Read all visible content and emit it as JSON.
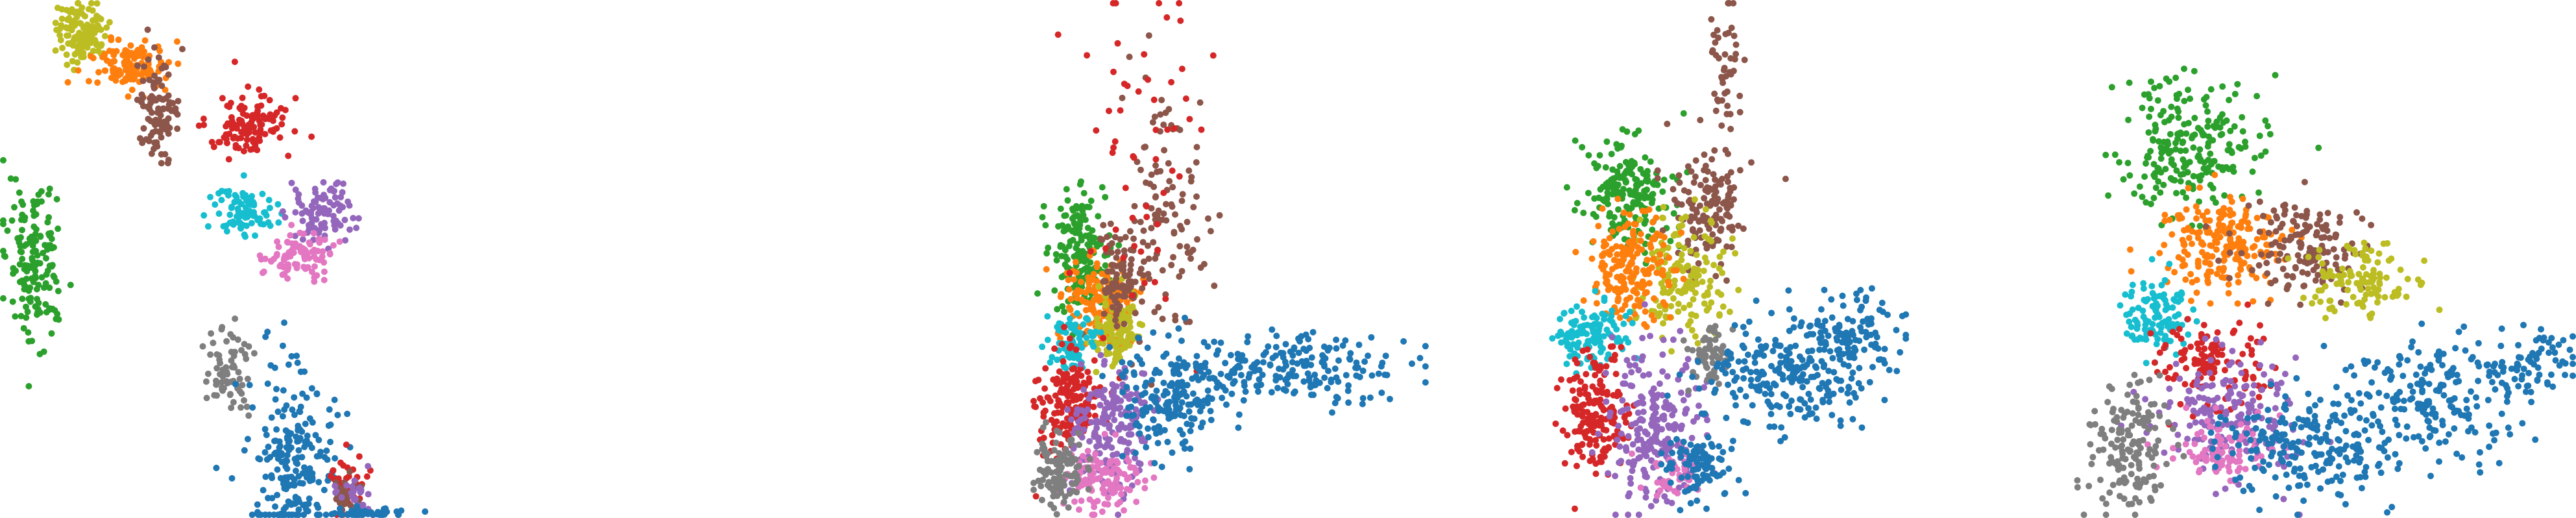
{
  "palette": {
    "blue": "#1f77b4",
    "orange": "#ff7f0e",
    "green": "#2ca02c",
    "red": "#d62728",
    "purple": "#9467bd",
    "brown": "#8c564b",
    "pink": "#e377c2",
    "gray": "#7f7f7f",
    "olive": "#bcbd22",
    "cyan": "#17becf"
  },
  "chart_data": [
    {
      "type": "scatter",
      "grid": false,
      "axes_visible": false,
      "legend": "none",
      "xlim": [
        0,
        100
      ],
      "ylim": [
        0,
        100
      ],
      "clusters": [
        {
          "color": "olive",
          "cx": 14,
          "cy": 6,
          "sx": 2.2,
          "sy": 3.0,
          "n": 120
        },
        {
          "color": "orange",
          "cx": 22,
          "cy": 13,
          "sx": 3.0,
          "sy": 2.5,
          "n": 130
        },
        {
          "color": "brown",
          "cx": 27,
          "cy": 21,
          "sx": 1.8,
          "sy": 4.5,
          "n": 100
        },
        {
          "color": "green",
          "cx": 6,
          "cy": 50,
          "sx": 2.5,
          "sy": 7.5,
          "n": 160
        },
        {
          "color": "red",
          "cx": 42,
          "cy": 24,
          "sx": 3.5,
          "sy": 3.0,
          "n": 120
        },
        {
          "color": "cyan",
          "cx": 42,
          "cy": 41,
          "sx": 2.5,
          "sy": 2.5,
          "n": 90
        },
        {
          "color": "purple",
          "cx": 54,
          "cy": 41,
          "sx": 3.0,
          "sy": 3.0,
          "n": 90
        },
        {
          "color": "pink",
          "cx": 51,
          "cy": 49,
          "sx": 3.0,
          "sy": 2.5,
          "n": 90
        },
        {
          "color": "gray",
          "cx": 39,
          "cy": 72,
          "sx": 2.0,
          "sy": 4.0,
          "n": 70
        },
        {
          "color": "blue",
          "cx": 50,
          "cy": 89,
          "sx": 3.5,
          "sy": 8.5,
          "n": 220
        },
        {
          "color": "red",
          "cx": 59,
          "cy": 93,
          "sx": 1.5,
          "sy": 3.0,
          "n": 40
        },
        {
          "color": "brown",
          "cx": 59,
          "cy": 96,
          "sx": 1.5,
          "sy": 2.0,
          "n": 30
        },
        {
          "color": "purple",
          "cx": 61,
          "cy": 95,
          "sx": 1.5,
          "sy": 2.0,
          "n": 25
        },
        {
          "color": "blue",
          "cx": 62,
          "cy": 99,
          "sx": 3.5,
          "sy": 0.6,
          "n": 45
        }
      ]
    },
    {
      "type": "scatter",
      "grid": false,
      "axes_visible": false,
      "legend": "none",
      "xlim": [
        0,
        100
      ],
      "ylim": [
        0,
        100
      ],
      "clusters": [
        {
          "color": "green",
          "cx": 12,
          "cy": 49,
          "sx": 3.5,
          "sy": 6.0,
          "n": 180
        },
        {
          "color": "orange",
          "cx": 17,
          "cy": 58,
          "sx": 4.0,
          "sy": 4.0,
          "n": 160
        },
        {
          "color": "olive",
          "cx": 22,
          "cy": 64,
          "sx": 3.0,
          "sy": 4.0,
          "n": 100
        },
        {
          "color": "brown",
          "cx": 23,
          "cy": 54,
          "sx": 3.0,
          "sy": 5.0,
          "n": 90
        },
        {
          "color": "brown",
          "cx": 33,
          "cy": 42,
          "sx": 5.5,
          "sy": 13.0,
          "n": 110
        },
        {
          "color": "red",
          "cx": 29,
          "cy": 28,
          "sx": 8.0,
          "sy": 16.0,
          "n": 55
        },
        {
          "color": "cyan",
          "cx": 10,
          "cy": 66,
          "sx": 3.0,
          "sy": 3.0,
          "n": 70
        },
        {
          "color": "red",
          "cx": 9,
          "cy": 78,
          "sx": 4.0,
          "sy": 5.0,
          "n": 170
        },
        {
          "color": "purple",
          "cx": 20,
          "cy": 82,
          "sx": 5.0,
          "sy": 6.0,
          "n": 180
        },
        {
          "color": "pink",
          "cx": 18,
          "cy": 93,
          "sx": 5.0,
          "sy": 3.0,
          "n": 120
        },
        {
          "color": "gray",
          "cx": 7,
          "cy": 91,
          "sx": 3.0,
          "sy": 4.0,
          "n": 110
        },
        {
          "color": "blue",
          "cx": 35,
          "cy": 77,
          "sx": 6.0,
          "sy": 5.0,
          "n": 160
        },
        {
          "color": "blue",
          "cx": 58,
          "cy": 71,
          "sx": 14.0,
          "sy": 3.5,
          "n": 170
        },
        {
          "color": "blue",
          "cx": 80,
          "cy": 72,
          "sx": 8.0,
          "sy": 3.0,
          "n": 50
        }
      ]
    },
    {
      "type": "scatter",
      "grid": false,
      "axes_visible": false,
      "legend": "none",
      "xlim": [
        0,
        100
      ],
      "ylim": [
        0,
        100
      ],
      "clusters": [
        {
          "color": "green",
          "cx": 23,
          "cy": 37,
          "sx": 6.0,
          "sy": 5.0,
          "n": 190
        },
        {
          "color": "brown",
          "cx": 45,
          "cy": 40,
          "sx": 5.0,
          "sy": 6.0,
          "n": 140
        },
        {
          "color": "brown",
          "cx": 50,
          "cy": 14,
          "sx": 2.0,
          "sy": 10.0,
          "n": 50
        },
        {
          "color": "olive",
          "cx": 38,
          "cy": 53,
          "sx": 6.0,
          "sy": 6.0,
          "n": 150
        },
        {
          "color": "orange",
          "cx": 24,
          "cy": 52,
          "sx": 6.0,
          "sy": 5.0,
          "n": 180
        },
        {
          "color": "cyan",
          "cx": 13,
          "cy": 65,
          "sx": 5.0,
          "sy": 3.0,
          "n": 120
        },
        {
          "color": "red",
          "cx": 14,
          "cy": 80,
          "sx": 4.5,
          "sy": 6.0,
          "n": 180
        },
        {
          "color": "purple",
          "cx": 30,
          "cy": 82,
          "sx": 7.0,
          "sy": 7.0,
          "n": 230
        },
        {
          "color": "pink",
          "cx": 36,
          "cy": 92,
          "sx": 5.0,
          "sy": 2.5,
          "n": 40
        },
        {
          "color": "gray",
          "cx": 46,
          "cy": 69,
          "sx": 3.0,
          "sy": 3.0,
          "n": 60
        },
        {
          "color": "blue",
          "cx": 43,
          "cy": 90,
          "sx": 5.0,
          "sy": 3.0,
          "n": 100
        },
        {
          "color": "blue",
          "cx": 67,
          "cy": 72,
          "sx": 11.0,
          "sy": 5.0,
          "n": 230
        },
        {
          "color": "blue",
          "cx": 84,
          "cy": 64,
          "sx": 8.0,
          "sy": 4.0,
          "n": 110
        }
      ]
    },
    {
      "type": "scatter",
      "grid": false,
      "axes_visible": false,
      "legend": "none",
      "xlim": [
        0,
        100
      ],
      "ylim": [
        0,
        100
      ],
      "clusters": [
        {
          "color": "green",
          "cx": 25,
          "cy": 28,
          "sx": 7.0,
          "sy": 6.5,
          "n": 220
        },
        {
          "color": "orange",
          "cx": 32,
          "cy": 47,
          "sx": 6.0,
          "sy": 4.5,
          "n": 200
        },
        {
          "color": "brown",
          "cx": 47,
          "cy": 48,
          "sx": 6.0,
          "sy": 4.5,
          "n": 150
        },
        {
          "color": "olive",
          "cx": 57,
          "cy": 55,
          "sx": 5.0,
          "sy": 4.0,
          "n": 110
        },
        {
          "color": "cyan",
          "cx": 19,
          "cy": 61,
          "sx": 3.5,
          "sy": 4.0,
          "n": 110
        },
        {
          "color": "red",
          "cx": 29,
          "cy": 70,
          "sx": 5.0,
          "sy": 4.0,
          "n": 120
        },
        {
          "color": "purple",
          "cx": 33,
          "cy": 80,
          "sx": 7.0,
          "sy": 6.0,
          "n": 190
        },
        {
          "color": "pink",
          "cx": 31,
          "cy": 87,
          "sx": 5.0,
          "sy": 3.0,
          "n": 90
        },
        {
          "color": "gray",
          "cx": 13,
          "cy": 86,
          "sx": 4.0,
          "sy": 6.0,
          "n": 150
        },
        {
          "color": "blue",
          "cx": 48,
          "cy": 87,
          "sx": 8.0,
          "sy": 5.0,
          "n": 200
        },
        {
          "color": "blue",
          "cx": 73,
          "cy": 77,
          "sx": 10.0,
          "sy": 6.0,
          "n": 210
        },
        {
          "color": "blue",
          "cx": 92,
          "cy": 69,
          "sx": 5.0,
          "sy": 3.0,
          "n": 60
        }
      ]
    }
  ]
}
